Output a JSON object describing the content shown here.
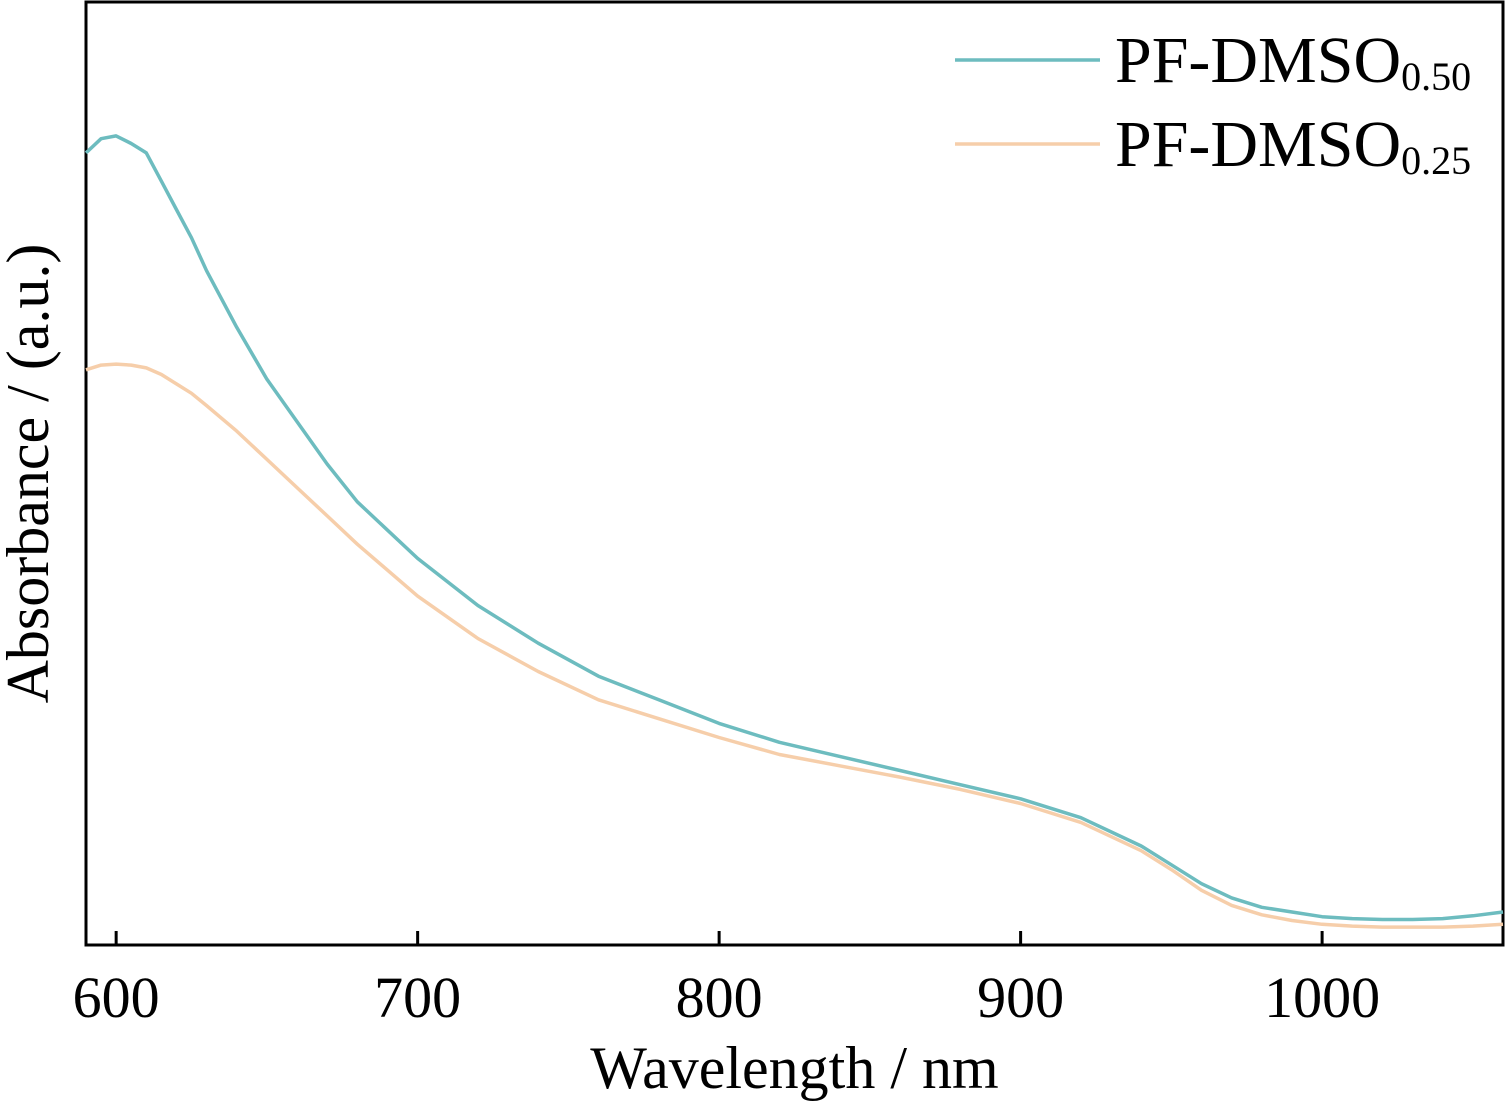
{
  "chart_data": {
    "type": "line",
    "title": "",
    "xlabel": "Wavelength / nm",
    "ylabel": "Absorbance / (a.u.)",
    "xlim": [
      590,
      1060
    ],
    "ylim": [
      0.0,
      1.0
    ],
    "x_ticks": [
      "600",
      "700",
      "800",
      "900",
      "1000"
    ],
    "y_ticks": [],
    "grid": false,
    "legend_position": "top-right",
    "series": [
      {
        "name_main": "PF-DMSO",
        "name_sub": "0.50",
        "color": "#6dbcbf",
        "x": [
          590,
          595,
          600,
          605,
          610,
          615,
          620,
          625,
          630,
          640,
          650,
          660,
          670,
          680,
          700,
          720,
          740,
          760,
          780,
          800,
          820,
          840,
          860,
          880,
          900,
          920,
          940,
          950,
          960,
          970,
          980,
          990,
          1000,
          1010,
          1020,
          1030,
          1040,
          1050,
          1060
        ],
        "values": [
          0.84,
          0.855,
          0.858,
          0.85,
          0.84,
          0.81,
          0.78,
          0.75,
          0.715,
          0.655,
          0.6,
          0.555,
          0.51,
          0.47,
          0.41,
          0.36,
          0.32,
          0.285,
          0.26,
          0.235,
          0.215,
          0.2,
          0.185,
          0.17,
          0.155,
          0.135,
          0.105,
          0.085,
          0.065,
          0.05,
          0.04,
          0.035,
          0.03,
          0.028,
          0.027,
          0.027,
          0.028,
          0.031,
          0.035
        ]
      },
      {
        "name_main": "PF-DMSO",
        "name_sub": "0.25",
        "color": "#f6ceaa",
        "x": [
          590,
          595,
          600,
          605,
          610,
          615,
          620,
          625,
          630,
          640,
          650,
          660,
          670,
          680,
          700,
          720,
          740,
          760,
          780,
          800,
          820,
          840,
          860,
          880,
          900,
          920,
          940,
          950,
          960,
          970,
          980,
          990,
          1000,
          1010,
          1020,
          1030,
          1040,
          1050,
          1060
        ],
        "values": [
          0.61,
          0.615,
          0.616,
          0.615,
          0.612,
          0.605,
          0.595,
          0.585,
          0.572,
          0.545,
          0.515,
          0.485,
          0.455,
          0.425,
          0.37,
          0.325,
          0.29,
          0.26,
          0.24,
          0.22,
          0.202,
          0.19,
          0.178,
          0.165,
          0.15,
          0.13,
          0.1,
          0.08,
          0.058,
          0.042,
          0.032,
          0.026,
          0.022,
          0.02,
          0.019,
          0.019,
          0.019,
          0.02,
          0.022
        ]
      }
    ]
  }
}
